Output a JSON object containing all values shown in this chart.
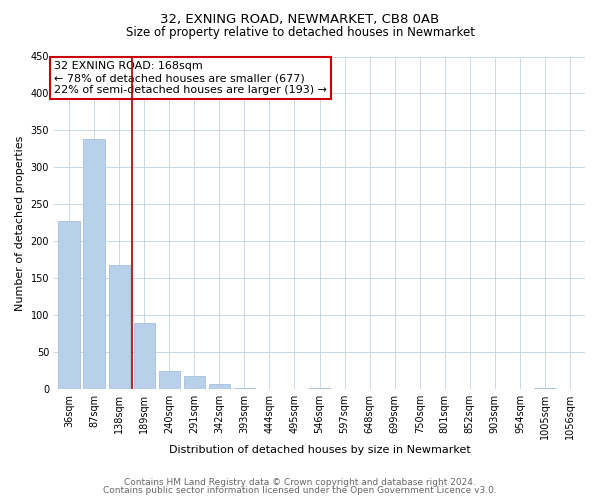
{
  "title": "32, EXNING ROAD, NEWMARKET, CB8 0AB",
  "subtitle": "Size of property relative to detached houses in Newmarket",
  "xlabel": "Distribution of detached houses by size in Newmarket",
  "ylabel": "Number of detached properties",
  "bar_color": "#b8d0ea",
  "bar_edge_color": "#9ab8d8",
  "categories": [
    "36sqm",
    "87sqm",
    "138sqm",
    "189sqm",
    "240sqm",
    "291sqm",
    "342sqm",
    "393sqm",
    "444sqm",
    "495sqm",
    "546sqm",
    "597sqm",
    "648sqm",
    "699sqm",
    "750sqm",
    "801sqm",
    "852sqm",
    "903sqm",
    "954sqm",
    "1005sqm",
    "1056sqm"
  ],
  "values": [
    228,
    338,
    168,
    89,
    24,
    18,
    7,
    2,
    0,
    0,
    2,
    0,
    0,
    0,
    0,
    0,
    0,
    0,
    0,
    2,
    0
  ],
  "ylim": [
    0,
    450
  ],
  "yticks": [
    0,
    50,
    100,
    150,
    200,
    250,
    300,
    350,
    400,
    450
  ],
  "vline_x": 2.5,
  "annotation_title": "32 EXNING ROAD: 168sqm",
  "annotation_line1": "← 78% of detached houses are smaller (677)",
  "annotation_line2": "22% of semi-detached houses are larger (193) →",
  "annotation_box_color": "#ffffff",
  "annotation_box_edge": "#cc0000",
  "vline_color": "#aa0000",
  "footer_line1": "Contains HM Land Registry data © Crown copyright and database right 2024.",
  "footer_line2": "Contains public sector information licensed under the Open Government Licence v3.0.",
  "bg_color": "#ffffff",
  "grid_color": "#c8d8e8",
  "title_fontsize": 9.5,
  "subtitle_fontsize": 8.5,
  "axis_label_fontsize": 8,
  "tick_fontsize": 7,
  "annotation_fontsize": 8,
  "footer_fontsize": 6.5
}
